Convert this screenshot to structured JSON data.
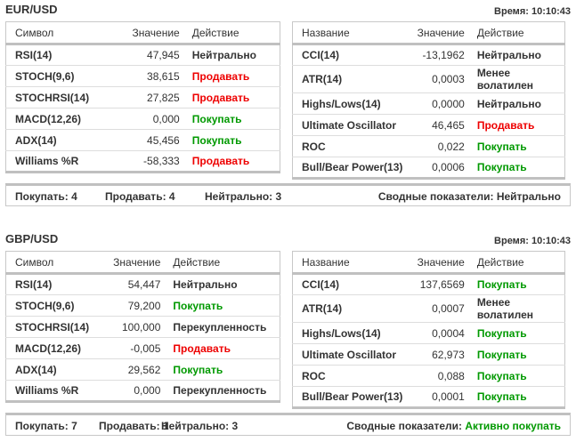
{
  "colors": {
    "sell": "#ee0000",
    "buy": "#009900"
  },
  "sections": [
    {
      "pair": "EUR/USD",
      "time": "Время: 10:10:43",
      "left": {
        "headers": [
          "Символ",
          "Значение",
          "Действие"
        ],
        "rows": [
          [
            "RSI(14)",
            "47,945",
            "Нейтрально",
            "neutral"
          ],
          [
            "STOCH(9,6)",
            "38,615",
            "Продавать",
            "sell"
          ],
          [
            "STOCHRSI(14)",
            "27,825",
            "Продавать",
            "sell"
          ],
          [
            "MACD(12,26)",
            "0,000",
            "Покупать",
            "buy"
          ],
          [
            "ADX(14)",
            "45,456",
            "Покупать",
            "buy"
          ],
          [
            "Williams %R",
            "-58,333",
            "Продавать",
            "sell"
          ]
        ]
      },
      "right": {
        "headers": [
          "Название",
          "Значение",
          "Действие"
        ],
        "rows": [
          [
            "CCI(14)",
            "-13,1962",
            "Нейтрально",
            "neutral"
          ],
          [
            "ATR(14)",
            "0,0003",
            "Менее волатилен",
            "neutral"
          ],
          [
            "Highs/Lows(14)",
            "0,0000",
            "Нейтрально",
            "neutral"
          ],
          [
            "Ultimate Oscillator",
            "46,465",
            "Продавать",
            "sell"
          ],
          [
            "ROC",
            "0,022",
            "Покупать",
            "buy"
          ],
          [
            "Bull/Bear Power(13)",
            "0,0006",
            "Покупать",
            "buy"
          ]
        ]
      },
      "summary": {
        "buy": "Покупать: 4",
        "sell": "Продавать: 4",
        "neutral": "Нейтрально: 3",
        "label": "Сводные показатели:",
        "value": "Нейтрально",
        "value_class": "neutral"
      }
    },
    {
      "pair": "GBP/USD",
      "time": "Время: 10:10:43",
      "left": {
        "headers": [
          "Символ",
          "Значение",
          "Действие"
        ],
        "rows": [
          [
            "RSI(14)",
            "54,447",
            "Нейтрально",
            "neutral"
          ],
          [
            "STOCH(9,6)",
            "79,200",
            "Покупать",
            "buy"
          ],
          [
            "STOCHRSI(14)",
            "100,000",
            "Перекупленность",
            "neutral"
          ],
          [
            "MACD(12,26)",
            "-0,005",
            "Продавать",
            "sell"
          ],
          [
            "ADX(14)",
            "29,562",
            "Покупать",
            "buy"
          ],
          [
            "Williams %R",
            "0,000",
            "Перекупленность",
            "neutral"
          ]
        ]
      },
      "right": {
        "headers": [
          "Название",
          "Значение",
          "Действие"
        ],
        "rows": [
          [
            "CCI(14)",
            "137,6569",
            "Покупать",
            "buy"
          ],
          [
            "ATR(14)",
            "0,0007",
            "Менее волатилен",
            "neutral"
          ],
          [
            "Highs/Lows(14)",
            "0,0004",
            "Покупать",
            "buy"
          ],
          [
            "Ultimate Oscillator",
            "62,973",
            "Покупать",
            "buy"
          ],
          [
            "ROC",
            "0,088",
            "Покупать",
            "buy"
          ],
          [
            "Bull/Bear Power(13)",
            "0,0001",
            "Покупать",
            "buy"
          ]
        ]
      },
      "summary": {
        "buy": "Покупать: 7",
        "sell": "Продавать: 1",
        "neutral": "Нейтрально: 3",
        "label": "Сводные показатели:",
        "value": "Активно покупать",
        "value_class": "buy"
      }
    }
  ]
}
